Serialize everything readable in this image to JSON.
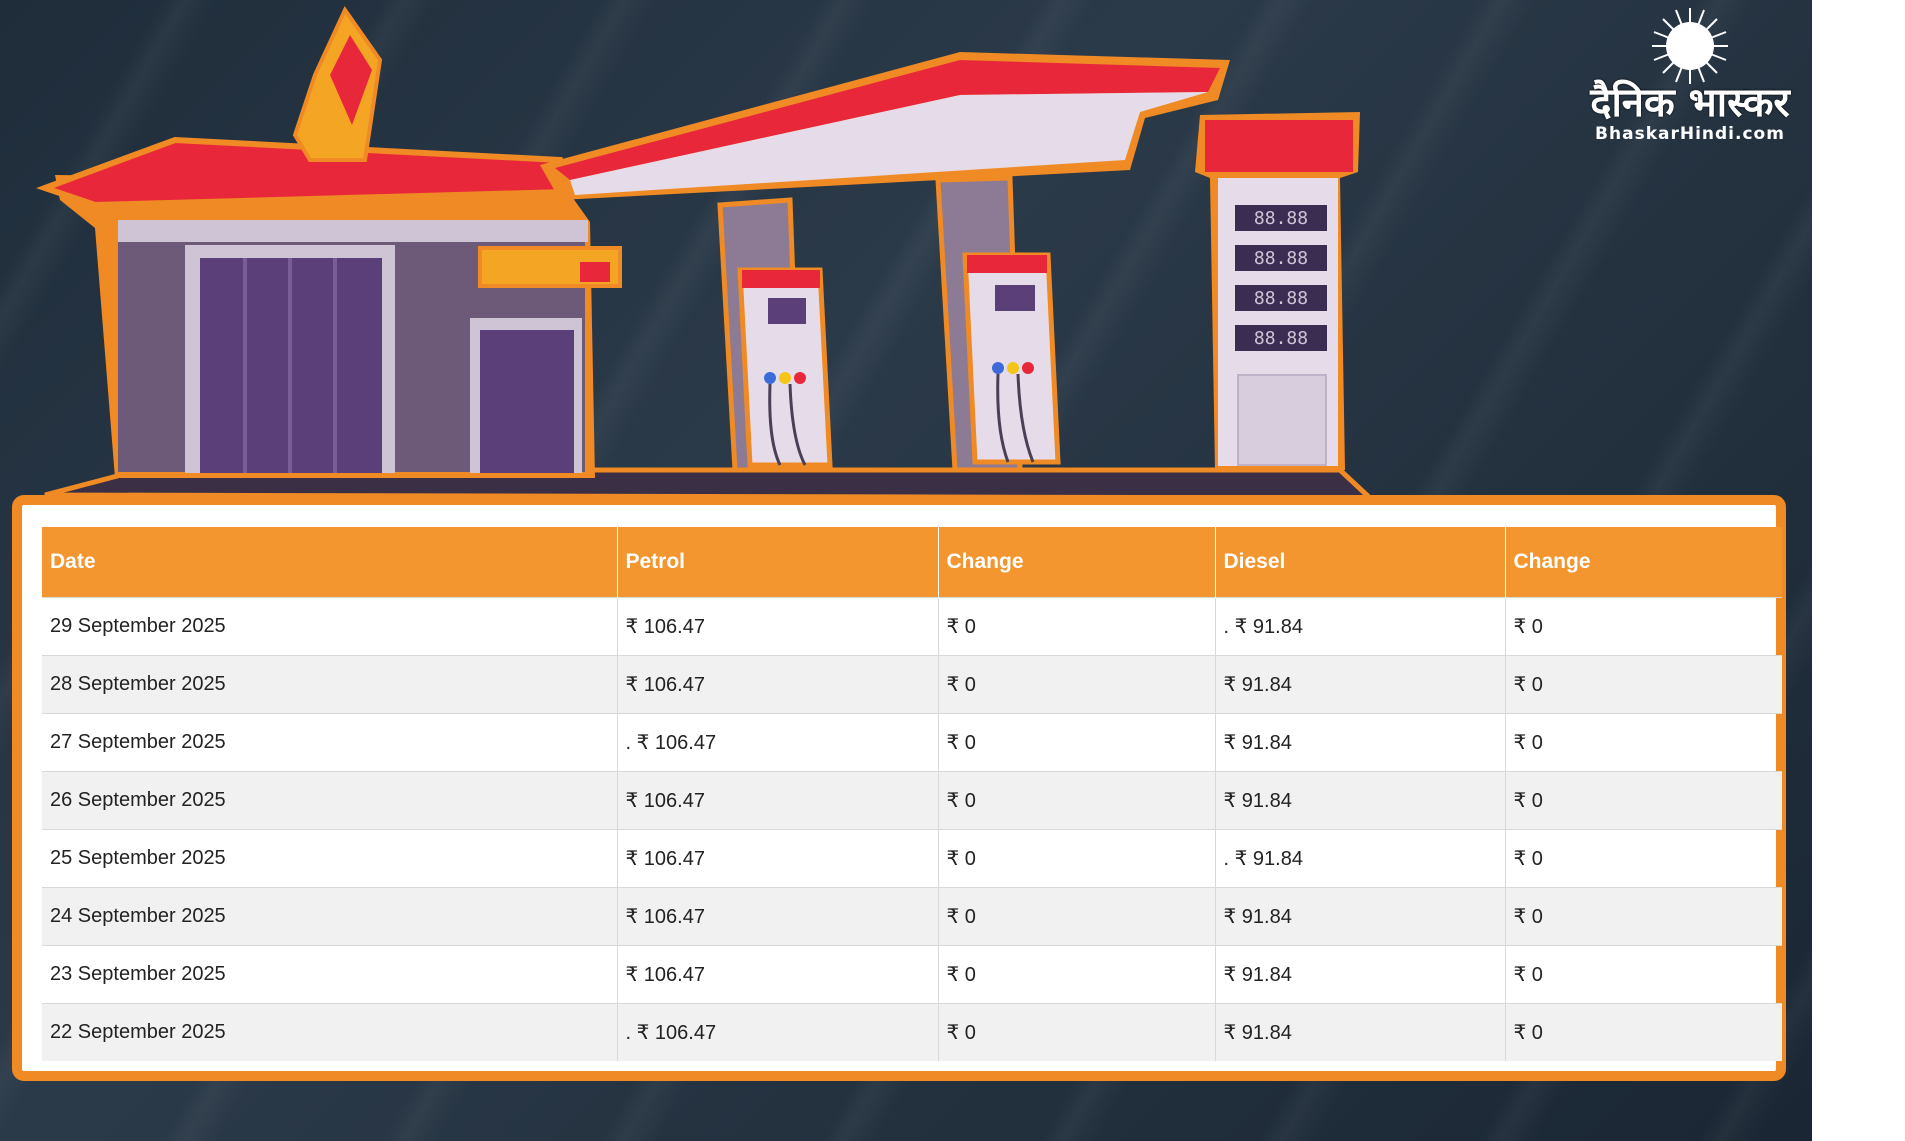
{
  "brand": {
    "hindi_name": "दैनिक भास्कर",
    "site": "BhaskarHindi.com"
  },
  "pump_display": [
    "88.88",
    "88.88",
    "88.88",
    "88.88"
  ],
  "colors": {
    "accent": "#f08a24",
    "header_bg": "#f39630",
    "background": "#24323f",
    "canopy_red": "#e8283a"
  },
  "table": {
    "headers": [
      "Date",
      "Petrol",
      "Change",
      "Diesel",
      "Change"
    ],
    "rows": [
      {
        "date": "29 September 2025",
        "petrol": "₹ 106.47",
        "petrol_change": "₹ 0",
        "diesel": ". ₹ 91.84",
        "diesel_change": "₹ 0"
      },
      {
        "date": "28 September 2025",
        "petrol": "₹ 106.47",
        "petrol_change": "₹ 0",
        "diesel": "₹ 91.84",
        "diesel_change": "₹ 0"
      },
      {
        "date": "27 September 2025",
        "petrol": ". ₹ 106.47",
        "petrol_change": "₹ 0",
        "diesel": "₹ 91.84",
        "diesel_change": "₹ 0"
      },
      {
        "date": "26 September 2025",
        "petrol": "₹ 106.47",
        "petrol_change": "₹ 0",
        "diesel": "₹ 91.84",
        "diesel_change": "₹ 0"
      },
      {
        "date": "25 September 2025",
        "petrol": "₹ 106.47",
        "petrol_change": "₹ 0",
        "diesel": ". ₹ 91.84",
        "diesel_change": "₹ 0"
      },
      {
        "date": "24 September 2025",
        "petrol": "₹ 106.47",
        "petrol_change": "₹ 0",
        "diesel": "₹ 91.84",
        "diesel_change": "₹ 0"
      },
      {
        "date": "23 September 2025",
        "petrol": "₹ 106.47",
        "petrol_change": "₹ 0",
        "diesel": "₹ 91.84",
        "diesel_change": "₹ 0"
      },
      {
        "date": "22 September 2025",
        "petrol": ". ₹ 106.47",
        "petrol_change": "₹ 0",
        "diesel": "₹ 91.84",
        "diesel_change": "₹ 0"
      }
    ]
  }
}
